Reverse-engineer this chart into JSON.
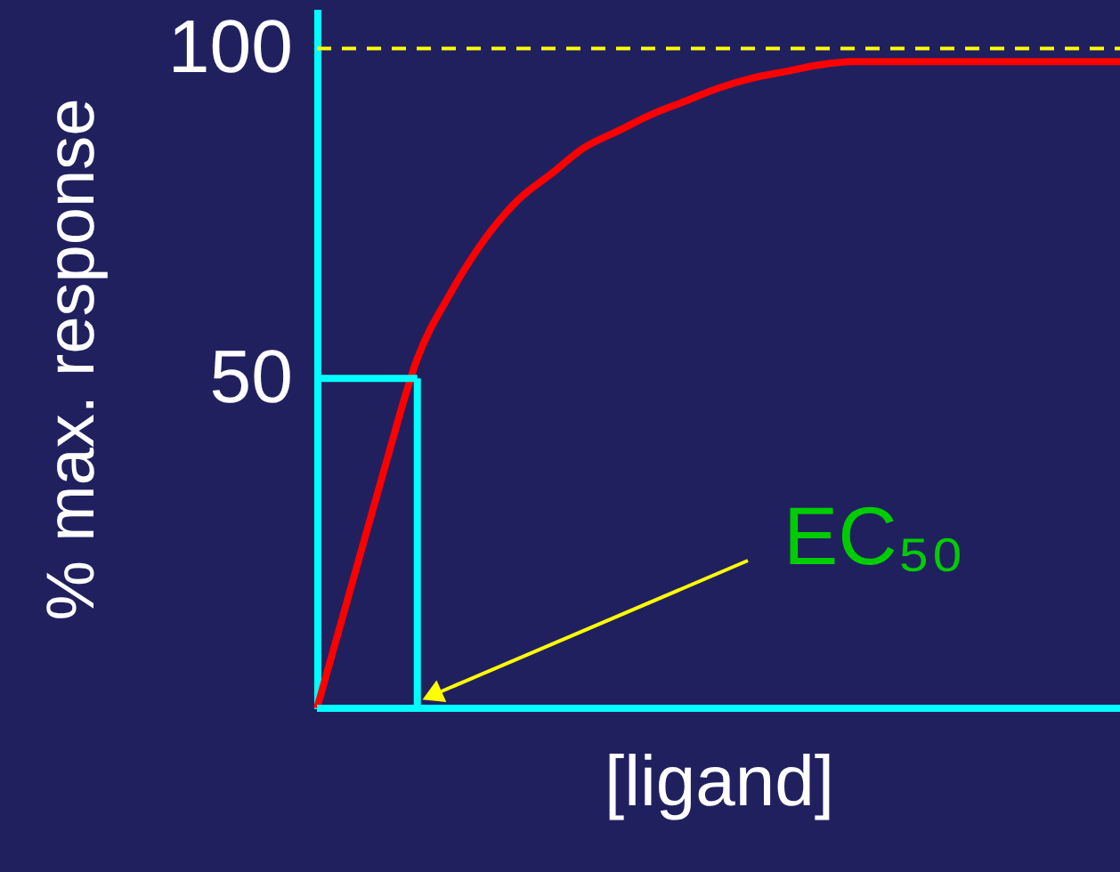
{
  "chart_data": {
    "type": "line",
    "xlabel": "[ligand]",
    "ylabel": "% max. response",
    "categories": [
      null,
      null,
      null,
      null,
      null,
      null,
      null,
      null,
      null,
      null,
      null,
      null,
      null,
      null,
      null,
      null,
      null,
      null,
      null,
      null,
      null,
      null,
      null,
      null,
      null
    ],
    "series": [
      {
        "color": "#ff0000",
        "values": [
          0,
          18,
          36,
          53,
          63,
          71,
          77,
          81,
          85,
          87.5,
          90,
          92,
          94,
          95.5,
          96.5,
          97.5,
          98,
          98,
          98,
          98,
          98,
          98,
          98,
          98,
          98
        ]
      },
      {
        "color": "#00ffff",
        "values": [
          50,
          50,
          50,
          50,
          null,
          null,
          null,
          null,
          null,
          null,
          null,
          null,
          null,
          null,
          null,
          null,
          null,
          null,
          null,
          null,
          null,
          null,
          null,
          null,
          null
        ],
        "errors": [
          null,
          null,
          null,
          [
            0,
            50
          ],
          null,
          null,
          null,
          null,
          null,
          null,
          null,
          null,
          null,
          null,
          null,
          null,
          null,
          null,
          null,
          null,
          null,
          null,
          null,
          null,
          null
        ]
      }
    ],
    "ylim": [
      0,
      106
    ],
    "yticks": [
      50,
      100
    ],
    "tick_labels": "y",
    "grid": false,
    "marker": "none",
    "line_style": "solid",
    "ref_lines": [
      {
        "axis": "y",
        "value": 100,
        "color": "#ffff00",
        "line_style": "dashed"
      },
      {
        "axis": "y",
        "value": 0,
        "color": "#00ffff"
      }
    ],
    "annotations": [
      "EC₅₀"
    ]
  }
}
